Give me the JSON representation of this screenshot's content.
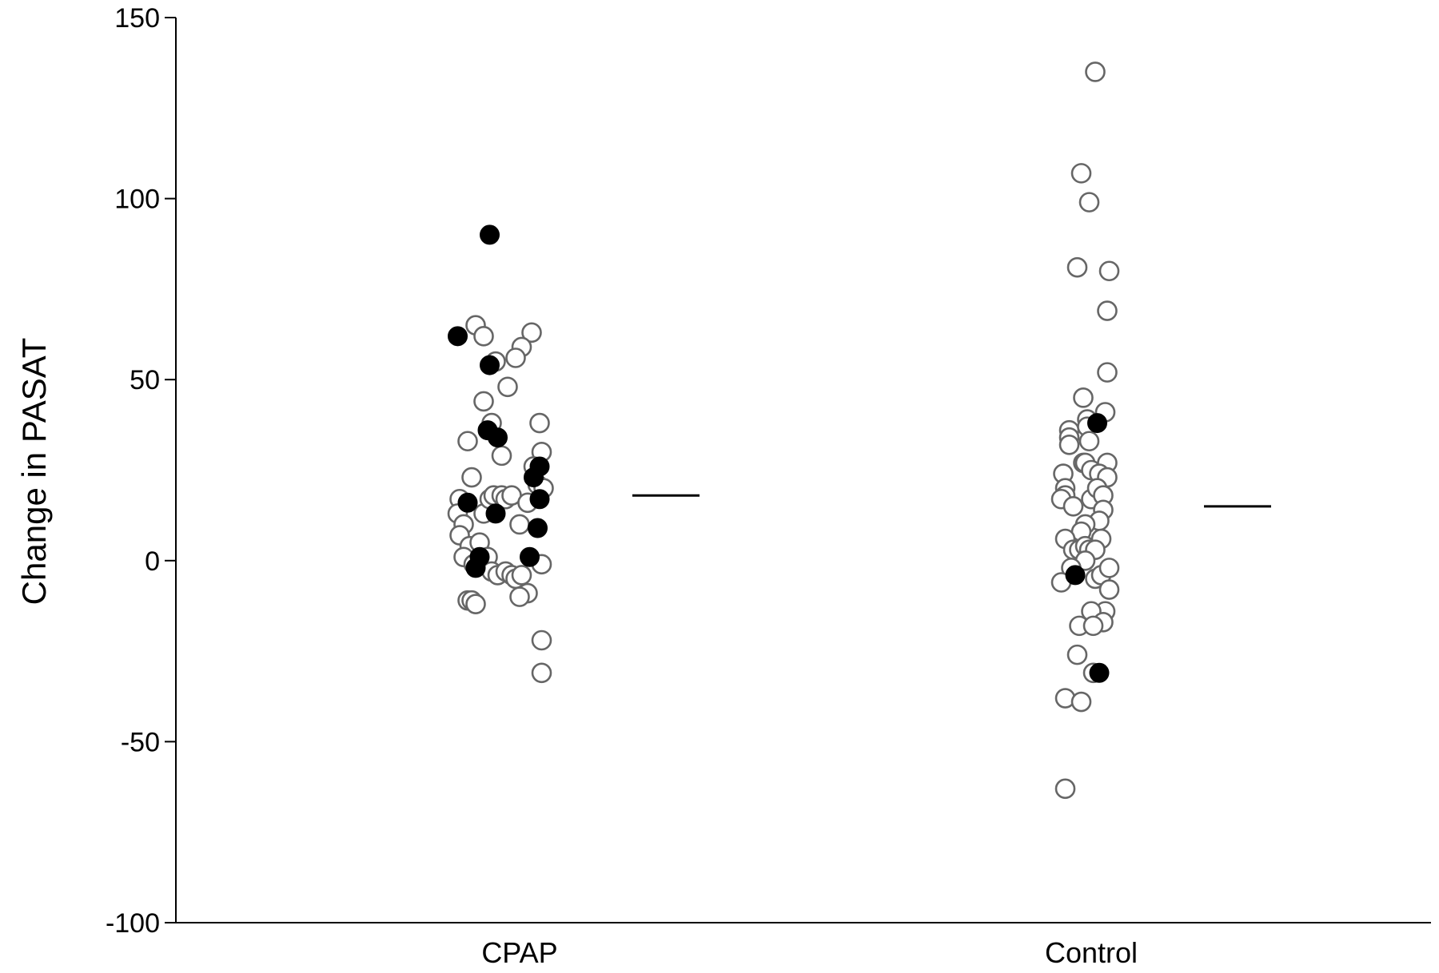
{
  "chart_data": {
    "type": "scatter",
    "title": "",
    "xlabel": "",
    "ylabel": "Change in PASAT",
    "ylim": [
      -100,
      150
    ],
    "yticks": [
      -100,
      -50,
      0,
      50,
      100,
      150
    ],
    "categories": [
      "CPAP",
      "Control"
    ],
    "grid": false,
    "legend": "none",
    "colors": {
      "open": "#666666",
      "filled": "#000000",
      "axis": "#000000"
    },
    "groups": [
      {
        "category": "CPAP",
        "mean": 18,
        "points": [
          {
            "x": -0.26,
            "y": 33,
            "filled": false
          },
          {
            "x": -0.18,
            "y": 44,
            "filled": false
          },
          {
            "x": -0.22,
            "y": 65,
            "filled": false
          },
          {
            "x": -0.18,
            "y": 62,
            "filled": false
          },
          {
            "x": -0.12,
            "y": 55,
            "filled": false
          },
          {
            "x": 0.06,
            "y": 63,
            "filled": false
          },
          {
            "x": 0.01,
            "y": 59,
            "filled": false
          },
          {
            "x": -0.02,
            "y": 56,
            "filled": false
          },
          {
            "x": -0.06,
            "y": 48,
            "filled": false
          },
          {
            "x": -0.14,
            "y": 38,
            "filled": false
          },
          {
            "x": 0.1,
            "y": 38,
            "filled": false
          },
          {
            "x": 0.11,
            "y": 30,
            "filled": false
          },
          {
            "x": -0.09,
            "y": 29,
            "filled": false
          },
          {
            "x": 0.07,
            "y": 26,
            "filled": false
          },
          {
            "x": -0.24,
            "y": 23,
            "filled": false
          },
          {
            "x": -0.3,
            "y": 17,
            "filled": false
          },
          {
            "x": -0.31,
            "y": 13,
            "filled": false
          },
          {
            "x": -0.28,
            "y": 10,
            "filled": false
          },
          {
            "x": -0.3,
            "y": 7,
            "filled": false
          },
          {
            "x": -0.25,
            "y": 4,
            "filled": false
          },
          {
            "x": -0.2,
            "y": 5,
            "filled": false
          },
          {
            "x": -0.18,
            "y": 13,
            "filled": false
          },
          {
            "x": -0.15,
            "y": 17,
            "filled": false
          },
          {
            "x": -0.13,
            "y": 18,
            "filled": false
          },
          {
            "x": -0.09,
            "y": 18,
            "filled": false
          },
          {
            "x": -0.07,
            "y": 17,
            "filled": false
          },
          {
            "x": -0.04,
            "y": 18,
            "filled": false
          },
          {
            "x": 0.04,
            "y": 16,
            "filled": false
          },
          {
            "x": 0.09,
            "y": 21,
            "filled": false
          },
          {
            "x": 0.12,
            "y": 20,
            "filled": false
          },
          {
            "x": 0.0,
            "y": 10,
            "filled": false
          },
          {
            "x": -0.28,
            "y": 1,
            "filled": false
          },
          {
            "x": -0.23,
            "y": -1,
            "filled": false
          },
          {
            "x": -0.16,
            "y": 1,
            "filled": false
          },
          {
            "x": -0.14,
            "y": -3,
            "filled": false
          },
          {
            "x": -0.11,
            "y": -4,
            "filled": false
          },
          {
            "x": -0.07,
            "y": -3,
            "filled": false
          },
          {
            "x": -0.04,
            "y": -4,
            "filled": false
          },
          {
            "x": -0.02,
            "y": -5,
            "filled": false
          },
          {
            "x": 0.01,
            "y": -4,
            "filled": false
          },
          {
            "x": 0.04,
            "y": -9,
            "filled": false
          },
          {
            "x": 0.0,
            "y": -10,
            "filled": false
          },
          {
            "x": 0.11,
            "y": -1,
            "filled": false
          },
          {
            "x": -0.26,
            "y": -11,
            "filled": false
          },
          {
            "x": -0.24,
            "y": -11,
            "filled": false
          },
          {
            "x": -0.22,
            "y": -12,
            "filled": false
          },
          {
            "x": 0.11,
            "y": -22,
            "filled": false
          },
          {
            "x": 0.11,
            "y": -31,
            "filled": false
          },
          {
            "x": -0.15,
            "y": 90,
            "filled": true
          },
          {
            "x": -0.31,
            "y": 62,
            "filled": true
          },
          {
            "x": -0.15,
            "y": 54,
            "filled": true
          },
          {
            "x": -0.16,
            "y": 36,
            "filled": true
          },
          {
            "x": -0.11,
            "y": 34,
            "filled": true
          },
          {
            "x": 0.1,
            "y": 26,
            "filled": true
          },
          {
            "x": 0.07,
            "y": 23,
            "filled": true
          },
          {
            "x": 0.1,
            "y": 17,
            "filled": true
          },
          {
            "x": -0.26,
            "y": 16,
            "filled": true
          },
          {
            "x": -0.12,
            "y": 13,
            "filled": true
          },
          {
            "x": 0.09,
            "y": 9,
            "filled": true
          },
          {
            "x": 0.05,
            "y": 1,
            "filled": true
          },
          {
            "x": -0.2,
            "y": 1,
            "filled": true
          },
          {
            "x": -0.22,
            "y": -2,
            "filled": true
          }
        ]
      },
      {
        "category": "Control",
        "mean": 15,
        "points": [
          {
            "x": 0.02,
            "y": 135,
            "filled": false
          },
          {
            "x": -0.05,
            "y": 107,
            "filled": false
          },
          {
            "x": -0.01,
            "y": 99,
            "filled": false
          },
          {
            "x": -0.07,
            "y": 81,
            "filled": false
          },
          {
            "x": 0.09,
            "y": 80,
            "filled": false
          },
          {
            "x": 0.08,
            "y": 69,
            "filled": false
          },
          {
            "x": 0.08,
            "y": 52,
            "filled": false
          },
          {
            "x": -0.04,
            "y": 45,
            "filled": false
          },
          {
            "x": 0.07,
            "y": 41,
            "filled": false
          },
          {
            "x": -0.02,
            "y": 39,
            "filled": false
          },
          {
            "x": -0.11,
            "y": 36,
            "filled": false
          },
          {
            "x": -0.02,
            "y": 37,
            "filled": false
          },
          {
            "x": -0.11,
            "y": 34,
            "filled": false
          },
          {
            "x": -0.11,
            "y": 32,
            "filled": false
          },
          {
            "x": -0.01,
            "y": 33,
            "filled": false
          },
          {
            "x": -0.04,
            "y": 27,
            "filled": false
          },
          {
            "x": -0.03,
            "y": 27,
            "filled": false
          },
          {
            "x": 0.08,
            "y": 27,
            "filled": false
          },
          {
            "x": -0.14,
            "y": 24,
            "filled": false
          },
          {
            "x": 0.0,
            "y": 25,
            "filled": false
          },
          {
            "x": 0.04,
            "y": 24,
            "filled": false
          },
          {
            "x": 0.08,
            "y": 23,
            "filled": false
          },
          {
            "x": -0.13,
            "y": 20,
            "filled": false
          },
          {
            "x": -0.13,
            "y": 18,
            "filled": false
          },
          {
            "x": -0.15,
            "y": 17,
            "filled": false
          },
          {
            "x": -0.09,
            "y": 15,
            "filled": false
          },
          {
            "x": 0.0,
            "y": 17,
            "filled": false
          },
          {
            "x": 0.03,
            "y": 20,
            "filled": false
          },
          {
            "x": 0.06,
            "y": 18,
            "filled": false
          },
          {
            "x": 0.06,
            "y": 14,
            "filled": false
          },
          {
            "x": 0.04,
            "y": 11,
            "filled": false
          },
          {
            "x": -0.03,
            "y": 10,
            "filled": false
          },
          {
            "x": -0.05,
            "y": 8,
            "filled": false
          },
          {
            "x": -0.13,
            "y": 6,
            "filled": false
          },
          {
            "x": 0.05,
            "y": 6,
            "filled": false
          },
          {
            "x": -0.09,
            "y": 3,
            "filled": false
          },
          {
            "x": -0.06,
            "y": 3,
            "filled": false
          },
          {
            "x": -0.03,
            "y": 4,
            "filled": false
          },
          {
            "x": -0.01,
            "y": 3,
            "filled": false
          },
          {
            "x": 0.02,
            "y": 3,
            "filled": false
          },
          {
            "x": -0.03,
            "y": 0,
            "filled": false
          },
          {
            "x": -0.1,
            "y": -2,
            "filled": false
          },
          {
            "x": -0.15,
            "y": -6,
            "filled": false
          },
          {
            "x": 0.02,
            "y": -5,
            "filled": false
          },
          {
            "x": 0.05,
            "y": -4,
            "filled": false
          },
          {
            "x": 0.09,
            "y": -2,
            "filled": false
          },
          {
            "x": 0.09,
            "y": -8,
            "filled": false
          },
          {
            "x": 0.07,
            "y": -14,
            "filled": false
          },
          {
            "x": 0.0,
            "y": -14,
            "filled": false
          },
          {
            "x": 0.06,
            "y": -17,
            "filled": false
          },
          {
            "x": -0.06,
            "y": -18,
            "filled": false
          },
          {
            "x": 0.01,
            "y": -18,
            "filled": false
          },
          {
            "x": -0.07,
            "y": -26,
            "filled": false
          },
          {
            "x": 0.01,
            "y": -31,
            "filled": false
          },
          {
            "x": -0.13,
            "y": -38,
            "filled": false
          },
          {
            "x": -0.05,
            "y": -39,
            "filled": false
          },
          {
            "x": -0.13,
            "y": -63,
            "filled": false
          },
          {
            "x": 0.03,
            "y": 38,
            "filled": true
          },
          {
            "x": -0.08,
            "y": -4,
            "filled": true
          },
          {
            "x": 0.04,
            "y": -31,
            "filled": true
          }
        ]
      }
    ]
  }
}
